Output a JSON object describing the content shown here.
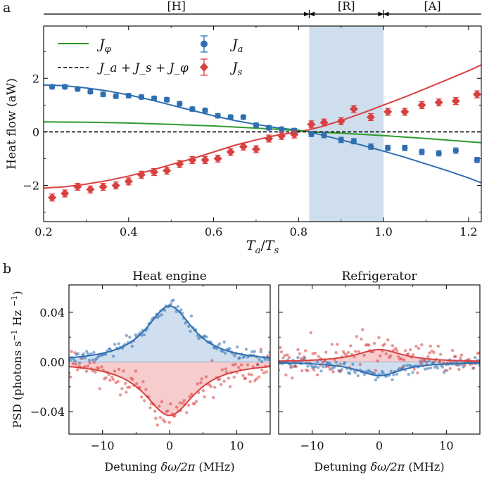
{
  "colors": {
    "blue": "#2f6fb0",
    "red": "#d94040",
    "green": "#2e9a2e",
    "shade_blue": "#b9d0e6",
    "fill_blue": "#c7d9ec",
    "fill_red": "#f6c3c3",
    "black": "#000000"
  },
  "panel_a": {
    "panel_label": "a",
    "regimes": [
      {
        "label": "[H]",
        "from": 0.2,
        "to": 0.825
      },
      {
        "label": "[R]",
        "from": 0.825,
        "to": 1.0
      },
      {
        "label": "[A]",
        "from": 1.0,
        "to": 1.23
      }
    ],
    "shaded_region": [
      0.825,
      1.0
    ]
  },
  "panel_b": {
    "panel_label": "b"
  },
  "chart_data": [
    {
      "type": "scatter",
      "id": "heat-flow",
      "title": "",
      "xlabel_main": "T",
      "xlabel_sub_a": "a",
      "xlabel_sep": "/",
      "xlabel_sub_s": "s",
      "ylabel": "Heat flow (aW)",
      "xlim": [
        0.2,
        1.23
      ],
      "ylim": [
        -3.35,
        3.95
      ],
      "xticks": [
        0.2,
        0.4,
        0.6,
        0.8,
        1.0,
        1.2
      ],
      "xtick_labels": [
        "0.2",
        "0.4",
        "0.6",
        "0.8",
        "1.0",
        "1.2"
      ],
      "yticks": [
        -2,
        0,
        2
      ],
      "ytick_labels": [
        "−2",
        "0",
        "2"
      ],
      "legend": {
        "placement": "top-left",
        "entries": [
          {
            "label": "J_φ",
            "main": "J",
            "sub": "φ",
            "kind": "line-green"
          },
          {
            "label": "J_a + J_s + J_φ",
            "kind": "dashed-black"
          },
          {
            "label": "J_a",
            "main": "J",
            "sub": "a",
            "kind": "circle-blue"
          },
          {
            "label": "J_s",
            "main": "J",
            "sub": "s",
            "kind": "diamond-red"
          }
        ]
      },
      "series": [
        {
          "name": "J_a",
          "marker": "circle",
          "x": [
            0.22,
            0.25,
            0.28,
            0.31,
            0.34,
            0.37,
            0.4,
            0.43,
            0.46,
            0.49,
            0.52,
            0.55,
            0.58,
            0.61,
            0.64,
            0.67,
            0.7,
            0.73,
            0.76,
            0.79,
            0.83,
            0.86,
            0.9,
            0.93,
            0.97,
            1.01,
            1.05,
            1.09,
            1.13,
            1.17,
            1.22
          ],
          "y": [
            1.68,
            1.68,
            1.6,
            1.5,
            1.4,
            1.33,
            1.35,
            1.3,
            1.25,
            1.2,
            1.05,
            0.85,
            0.8,
            0.6,
            0.55,
            0.55,
            0.25,
            0.15,
            0.1,
            0.05,
            -0.08,
            -0.12,
            -0.3,
            -0.35,
            -0.55,
            -0.6,
            -0.6,
            -0.75,
            -0.8,
            -0.7,
            -1.05
          ],
          "err": [
            0.08,
            0.08,
            0.08,
            0.08,
            0.08,
            0.08,
            0.08,
            0.08,
            0.08,
            0.08,
            0.08,
            0.08,
            0.08,
            0.08,
            0.08,
            0.08,
            0.08,
            0.08,
            0.08,
            0.08,
            0.1,
            0.1,
            0.1,
            0.1,
            0.1,
            0.1,
            0.1,
            0.1,
            0.1,
            0.1,
            0.1
          ]
        },
        {
          "name": "J_s",
          "marker": "diamond",
          "x": [
            0.22,
            0.25,
            0.28,
            0.31,
            0.34,
            0.37,
            0.4,
            0.43,
            0.46,
            0.49,
            0.52,
            0.55,
            0.58,
            0.61,
            0.64,
            0.67,
            0.7,
            0.73,
            0.76,
            0.79,
            0.83,
            0.86,
            0.9,
            0.93,
            0.97,
            1.01,
            1.05,
            1.09,
            1.13,
            1.17,
            1.22
          ],
          "y": [
            -2.45,
            -2.3,
            -2.05,
            -2.15,
            -2.05,
            -2.0,
            -1.85,
            -1.6,
            -1.5,
            -1.45,
            -1.2,
            -1.05,
            -1.05,
            -1.0,
            -0.75,
            -0.55,
            -0.65,
            -0.25,
            -0.15,
            -0.1,
            0.28,
            0.35,
            0.4,
            0.85,
            0.55,
            0.75,
            0.75,
            1.0,
            1.1,
            1.15,
            1.4
          ]
        },
        {
          "name": "J_a (theory)",
          "style": "line-blue",
          "x": [
            0.2,
            0.25,
            0.3,
            0.35,
            0.4,
            0.45,
            0.5,
            0.55,
            0.6,
            0.65,
            0.7,
            0.75,
            0.8,
            0.825,
            0.85,
            0.9,
            0.95,
            1.0,
            1.05,
            1.1,
            1.15,
            1.2,
            1.23
          ],
          "y": [
            1.75,
            1.72,
            1.64,
            1.53,
            1.38,
            1.2,
            1.0,
            0.8,
            0.6,
            0.42,
            0.28,
            0.15,
            0.06,
            0.0,
            -0.1,
            -0.3,
            -0.5,
            -0.72,
            -0.95,
            -1.2,
            -1.45,
            -1.72,
            -1.9
          ]
        },
        {
          "name": "J_s (theory)",
          "style": "line-red",
          "x": [
            0.2,
            0.25,
            0.3,
            0.35,
            0.4,
            0.45,
            0.5,
            0.55,
            0.6,
            0.65,
            0.7,
            0.75,
            0.8,
            0.825,
            0.85,
            0.9,
            0.95,
            1.0,
            1.05,
            1.1,
            1.15,
            1.2,
            1.23
          ],
          "y": [
            -2.1,
            -2.05,
            -1.95,
            -1.82,
            -1.65,
            -1.45,
            -1.22,
            -1.0,
            -0.75,
            -0.5,
            -0.3,
            -0.12,
            0.0,
            0.08,
            0.18,
            0.42,
            0.7,
            1.0,
            1.3,
            1.62,
            1.95,
            2.28,
            2.5
          ]
        },
        {
          "name": "J_φ",
          "style": "line-green",
          "x": [
            0.2,
            0.3,
            0.4,
            0.5,
            0.6,
            0.7,
            0.8,
            0.825,
            0.9,
            1.0,
            1.1,
            1.23
          ],
          "y": [
            0.37,
            0.36,
            0.33,
            0.28,
            0.22,
            0.14,
            0.05,
            0.0,
            -0.05,
            -0.14,
            -0.25,
            -0.4
          ]
        },
        {
          "name": "J_a + J_s + J_φ",
          "style": "dashed-black",
          "x": [
            0.2,
            1.23
          ],
          "y": [
            0,
            0
          ]
        }
      ]
    },
    {
      "type": "scatter",
      "id": "psd-heat-engine",
      "title": "Heat engine",
      "xlabel_prefix": "Detuning ",
      "xlabel_math": "δω/2π",
      "xlabel_suffix": " (MHz)",
      "ylabel_prefix": "PSD (photons s",
      "ylabel_mid": " Hz ",
      "ylabel_suffix": ")",
      "ylabel_exp": "−1",
      "xlim": [
        -15,
        15
      ],
      "ylim": [
        -0.058,
        0.062
      ],
      "xticks": [
        -10,
        0,
        10
      ],
      "xtick_labels": [
        "−10",
        "0",
        "10"
      ],
      "yticks": [
        -0.04,
        0.0,
        0.04
      ],
      "ytick_labels": [
        "−0.04",
        "0.00",
        "0.04"
      ],
      "series": [
        {
          "name": "blue fit",
          "style": "lorentzian",
          "amplitude": 0.045,
          "hwhm": 4.3
        },
        {
          "name": "red fit",
          "style": "lorentzian",
          "amplitude": -0.043,
          "hwhm": 4.6
        },
        {
          "name": "blue points",
          "style": "noisy-points",
          "amplitude": 0.045,
          "hwhm": 4.3,
          "noise": 0.0025
        },
        {
          "name": "red points",
          "style": "noisy-points",
          "amplitude": -0.043,
          "hwhm": 4.6,
          "noise": 0.006
        }
      ]
    },
    {
      "type": "scatter",
      "id": "psd-refrigerator",
      "title": "Refrigerator",
      "xlabel_prefix": "Detuning ",
      "xlabel_math": "δω/2π",
      "xlabel_suffix": " (MHz)",
      "xlim": [
        -15,
        15
      ],
      "ylim": [
        -0.058,
        0.062
      ],
      "xticks": [
        -10,
        0,
        10
      ],
      "xtick_labels": [
        "−10",
        "0",
        "10"
      ],
      "yticks": [
        -0.04,
        0.0,
        0.04
      ],
      "series": [
        {
          "name": "blue fit",
          "style": "lorentzian",
          "amplitude": -0.011,
          "hwhm": 4.0
        },
        {
          "name": "red fit",
          "style": "lorentzian",
          "amplitude": 0.01,
          "hwhm": 4.2
        },
        {
          "name": "blue points",
          "style": "noisy-points",
          "amplitude": -0.011,
          "hwhm": 4.0,
          "noise": 0.0022
        },
        {
          "name": "red points",
          "style": "noisy-points",
          "amplitude": 0.01,
          "hwhm": 4.2,
          "noise": 0.007
        }
      ]
    }
  ]
}
